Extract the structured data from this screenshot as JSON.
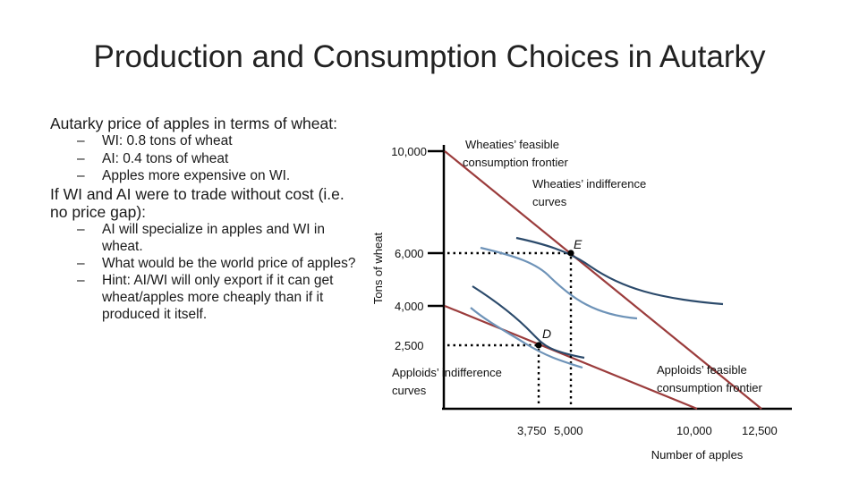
{
  "slide": {
    "title": "Production and Consumption Choices in Autarky"
  },
  "left_panel": {
    "heading1": "Autarky price of apples in terms of wheat:",
    "bullets1": [
      "WI: 0.8 tons of wheat",
      "AI: 0.4 tons of wheat",
      "Apples more expensive on WI."
    ],
    "heading2": "If WI and AI were to trade without cost (i.e. no price gap):",
    "bullets2": [
      "AI will specialize in apples and WI in wheat.",
      "What would be the world price of apples?",
      "Hint: AI/WI will only export if it can get wheat/apples more cheaply than if it produced it itself."
    ]
  },
  "diagram": {
    "y_axis_label": "Tons of wheat",
    "x_axis_label": "Number of apples",
    "y_ticks": [
      "10,000",
      "6,000",
      "4,000",
      "2,500"
    ],
    "x_ticks": [
      "3,750",
      "5,000",
      "10,000",
      "12,500"
    ],
    "points": {
      "E": "E",
      "D": "D"
    },
    "labels": {
      "wi_frontier": [
        "Wheaties’ feasible",
        "consumption frontier"
      ],
      "wi_indiff": [
        "Wheaties’ indifference",
        "curves"
      ],
      "ai_indiff": [
        "Apploids’ indifference",
        "curves"
      ],
      "ai_frontier": [
        "Apploids’ feasible",
        "consumption frontier"
      ]
    },
    "colors": {
      "frontier": "#9b3c3c",
      "indiff_light": "#6e93b8",
      "indiff_dark": "#2b4a6b",
      "axis": "#000000"
    }
  }
}
